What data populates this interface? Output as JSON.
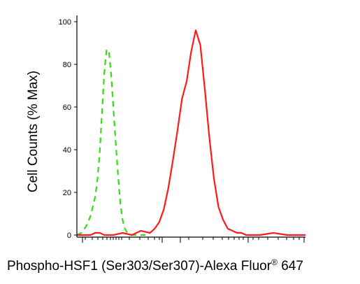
{
  "chart_data": {
    "type": "line",
    "xlabel": "Phospho-HSF1 (Ser303/Ser307)-Alexa Fluor",
    "xlabel_reg": "®",
    "xlabel_suffix": " 647",
    "ylabel": "Cell Counts (% Max)",
    "ylim": [
      0,
      100
    ],
    "xlim": [
      0,
      100
    ],
    "y_ticks": [
      0,
      20,
      40,
      60,
      80,
      100
    ],
    "x_tick_labels_shown": false,
    "grid": false,
    "legend": "none",
    "series": [
      {
        "color": "#33dd11",
        "dash": "dashed",
        "x": [
          0,
          2,
          4,
          6,
          8,
          9,
          10,
          11,
          12,
          13,
          14,
          15,
          16,
          17,
          18,
          19,
          20,
          21,
          22,
          24,
          26,
          28,
          30
        ],
        "values": [
          0,
          1,
          4,
          9,
          18,
          26,
          39,
          58,
          76,
          87,
          86,
          75,
          59,
          43,
          28,
          15,
          7,
          3,
          1,
          0,
          0,
          0,
          0
        ]
      },
      {
        "color": "#ff1a1a",
        "dash": "solid",
        "x": [
          0,
          6,
          8,
          10,
          12,
          16,
          20,
          24,
          28,
          32,
          34,
          36,
          38,
          40,
          42,
          44,
          46,
          48,
          50,
          52,
          54,
          56,
          58,
          60,
          62,
          64,
          66,
          68,
          70,
          72,
          74,
          76,
          80,
          86,
          92,
          100
        ],
        "values": [
          0,
          0,
          1,
          1,
          0,
          0,
          1,
          0,
          2,
          1,
          3,
          6,
          12,
          22,
          35,
          49,
          64,
          72,
          86,
          96,
          89,
          68,
          45,
          26,
          13,
          7,
          3,
          2,
          1,
          1,
          0,
          0,
          0,
          1,
          0,
          0
        ]
      }
    ]
  }
}
